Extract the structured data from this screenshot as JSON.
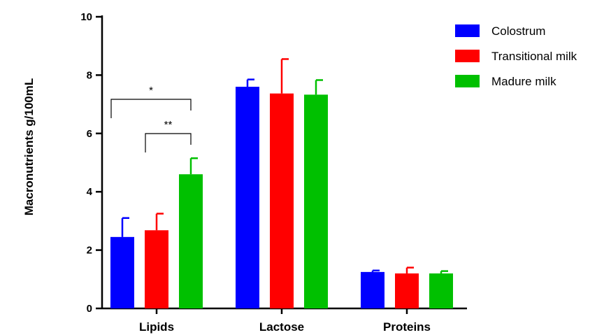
{
  "chart_data": {
    "type": "bar",
    "title": "",
    "xlabel": "",
    "ylabel": "Macronutrients g/100mL",
    "ylim": [
      0,
      10
    ],
    "yticks": [
      0,
      2,
      4,
      6,
      8,
      10
    ],
    "categories": [
      "Lipids",
      "Lactose",
      "Proteins"
    ],
    "series": [
      {
        "name": "Colostrum",
        "color": "#0000ff",
        "values": [
          2.45,
          7.6,
          1.25
        ],
        "errors": [
          0.65,
          0.25,
          0.05
        ]
      },
      {
        "name": "Transitional milk",
        "color": "#ff0000",
        "values": [
          2.68,
          7.37,
          1.2
        ],
        "errors": [
          0.57,
          1.18,
          0.2
        ]
      },
      {
        "name": "Madure milk",
        "color": "#00c000",
        "values": [
          4.6,
          7.33,
          1.2
        ],
        "errors": [
          0.55,
          0.5,
          0.08
        ]
      }
    ],
    "legend_position": "top-right",
    "annotations": [
      {
        "category": "Lipids",
        "from_series": 0,
        "to_series": 2,
        "label": "*"
      },
      {
        "category": "Lipids",
        "from_series": 1,
        "to_series": 2,
        "label": "**"
      }
    ],
    "grid": false
  }
}
